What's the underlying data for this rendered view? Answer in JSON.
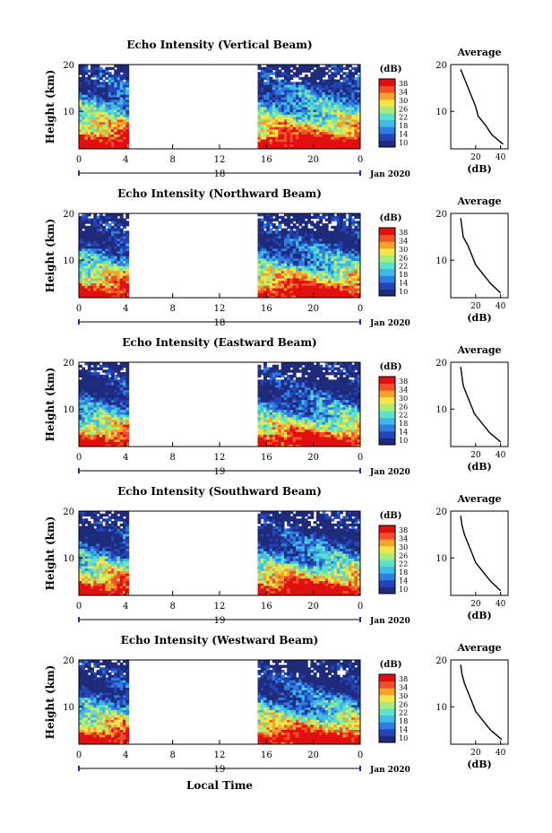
{
  "figure": {
    "xlabel_bottom": "Local Time",
    "date_label": "Jan 2020",
    "colorbar_unit": "(dB)",
    "colorbar_ticks": [
      "38",
      "34",
      "30",
      "26",
      "22",
      "18",
      "14",
      "10"
    ],
    "colorscale": [
      "#1f2a7a",
      "#2345b8",
      "#2f7de0",
      "#3fb9e8",
      "#5fe0c8",
      "#a8ec7a",
      "#f4e64a",
      "#f5a32a",
      "#f0502a",
      "#e01010"
    ]
  },
  "chart_data": [
    {
      "type": "heatmap",
      "title": "Echo Intensity (Vertical Beam)",
      "ylabel": "Height (km)",
      "ylim": [
        2,
        20
      ],
      "yticks": [
        "20",
        "10"
      ],
      "xticks": [
        "0",
        "4",
        "8",
        "12",
        "16",
        "20",
        "0"
      ],
      "xlim_hours": [
        0,
        24
      ],
      "day_label": "18",
      "data_gap_hours": [
        4.3,
        15.2
      ],
      "zlim_dB": [
        10,
        38
      ],
      "height_km": [
        3,
        5,
        7,
        9,
        11,
        13,
        15,
        17,
        19
      ],
      "avg_dB": [
        42,
        33,
        28,
        22,
        20,
        17,
        14,
        11,
        8
      ],
      "average_panel": {
        "title": "Average",
        "xlabel": "(dB)",
        "xticks": [
          "20",
          "40"
        ],
        "yticks": [
          "20",
          "10"
        ]
      }
    },
    {
      "type": "heatmap",
      "title": "Echo Intensity (Northward Beam)",
      "ylabel": "Height (km)",
      "ylim": [
        2,
        20
      ],
      "yticks": [
        "20",
        "10"
      ],
      "xticks": [
        "0",
        "4",
        "8",
        "12",
        "16",
        "20",
        "0"
      ],
      "xlim_hours": [
        0,
        24
      ],
      "day_label": "18",
      "data_gap_hours": [
        4.3,
        15.2
      ],
      "zlim_dB": [
        10,
        38
      ],
      "height_km": [
        3,
        5,
        7,
        9,
        11,
        13,
        15,
        17,
        19
      ],
      "avg_dB": [
        40,
        32,
        26,
        20,
        17,
        14,
        10,
        9,
        8
      ],
      "average_panel": {
        "title": "Average",
        "xlabel": "(dB)",
        "xticks": [
          "20",
          "40"
        ],
        "yticks": [
          "20",
          "10"
        ]
      }
    },
    {
      "type": "heatmap",
      "title": "Echo Intensity (Eastward Beam)",
      "ylabel": "Height (km)",
      "ylim": [
        2,
        20
      ],
      "yticks": [
        "20",
        "10"
      ],
      "xticks": [
        "0",
        "4",
        "8",
        "12",
        "16",
        "20",
        "0"
      ],
      "xlim_hours": [
        0,
        24
      ],
      "day_label": "19",
      "data_gap_hours": [
        4.3,
        15.2
      ],
      "zlim_dB": [
        10,
        38
      ],
      "height_km": [
        3,
        5,
        7,
        9,
        11,
        13,
        15,
        17,
        19
      ],
      "avg_dB": [
        40,
        31,
        25,
        19,
        16,
        13,
        10,
        9,
        8
      ],
      "average_panel": {
        "title": "Average",
        "xlabel": "(dB)",
        "xticks": [
          "20",
          "40"
        ],
        "yticks": [
          "20",
          "10"
        ]
      }
    },
    {
      "type": "heatmap",
      "title": "Echo Intensity (Southward Beam)",
      "ylabel": "Height (km)",
      "ylim": [
        2,
        20
      ],
      "yticks": [
        "20",
        "10"
      ],
      "xticks": [
        "0",
        "4",
        "8",
        "12",
        "16",
        "20",
        "0"
      ],
      "xlim_hours": [
        0,
        24
      ],
      "day_label": "19",
      "data_gap_hours": [
        4.3,
        15.2
      ],
      "zlim_dB": [
        10,
        38
      ],
      "height_km": [
        3,
        5,
        7,
        9,
        11,
        13,
        15,
        17,
        19
      ],
      "avg_dB": [
        40,
        32,
        26,
        20,
        17,
        14,
        11,
        9,
        8
      ],
      "average_panel": {
        "title": "Average",
        "xlabel": "(dB)",
        "xticks": [
          "20",
          "40"
        ],
        "yticks": [
          "20",
          "10"
        ]
      }
    },
    {
      "type": "heatmap",
      "title": "Echo Intensity (Westward Beam)",
      "ylabel": "Height (km)",
      "ylim": [
        2,
        20
      ],
      "yticks": [
        "20",
        "10"
      ],
      "xticks": [
        "0",
        "4",
        "8",
        "12",
        "16",
        "20",
        "0"
      ],
      "xlim_hours": [
        0,
        24
      ],
      "day_label": "19",
      "data_gap_hours": [
        4.3,
        15.2
      ],
      "zlim_dB": [
        10,
        38
      ],
      "height_km": [
        3,
        5,
        7,
        9,
        11,
        13,
        15,
        17,
        19
      ],
      "avg_dB": [
        41,
        32,
        26,
        20,
        17,
        14,
        11,
        9,
        8
      ],
      "average_panel": {
        "title": "Average",
        "xlabel": "(dB)",
        "xticks": [
          "20",
          "40"
        ],
        "yticks": [
          "20",
          "10"
        ]
      }
    }
  ]
}
